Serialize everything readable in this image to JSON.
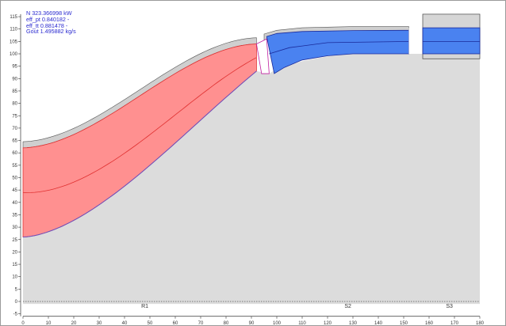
{
  "info": {
    "lines": [
      "N 323.366998 kW",
      "eff_pt 0.840182 -",
      "eff_tt 0.881478 -",
      "Gout 1.495882 kg/s"
    ]
  },
  "axes": {
    "x": {
      "min": 0,
      "max": 180,
      "step": 10
    },
    "y": {
      "min": -5,
      "max": 115,
      "step": 5
    }
  },
  "regions": [
    {
      "label": "R1",
      "x": 48
    },
    {
      "label": "S2",
      "x": 128
    },
    {
      "label": "S3",
      "x": 168
    }
  ],
  "colors": {
    "rotor_fill": "#ff9090",
    "rotor_line": "#e03030",
    "stator_fill": "#4a82f0",
    "stator_line": "#1a2a9a",
    "hub_fill": "#dcdcdc",
    "info_text": "#2a2ad0"
  }
}
